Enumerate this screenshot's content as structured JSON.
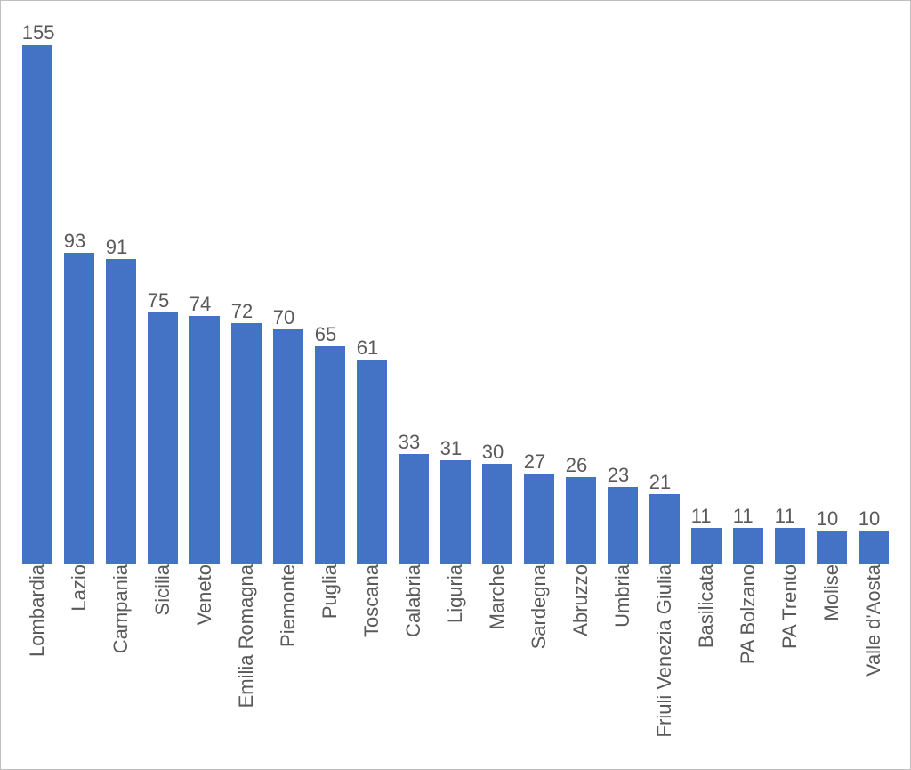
{
  "chart": {
    "type": "bar",
    "background_color": "#ffffff",
    "border_color": "#bfbfbf",
    "bar_color": "#4472c4",
    "text_color": "#595959",
    "label_fontsize": 22,
    "value_fontsize": 22,
    "bar_width": 0.82,
    "y_max": 160,
    "categories": [
      "Lombardia",
      "Lazio",
      "Campania",
      "Sicilia",
      "Veneto",
      "Emilia Romagna",
      "Piemonte",
      "Puglia",
      "Toscana",
      "Calabria",
      "Liguria",
      "Marche",
      "Sardegna",
      "Abruzzo",
      "Umbria",
      "Friuli Venezia Giulia",
      "Basilicata",
      "PA Bolzano",
      "PA Trento",
      "Molise",
      "Valle d'Aosta"
    ],
    "values": [
      155,
      93,
      91,
      75,
      74,
      72,
      70,
      65,
      61,
      33,
      31,
      30,
      27,
      26,
      23,
      21,
      11,
      11,
      11,
      10,
      10
    ]
  }
}
